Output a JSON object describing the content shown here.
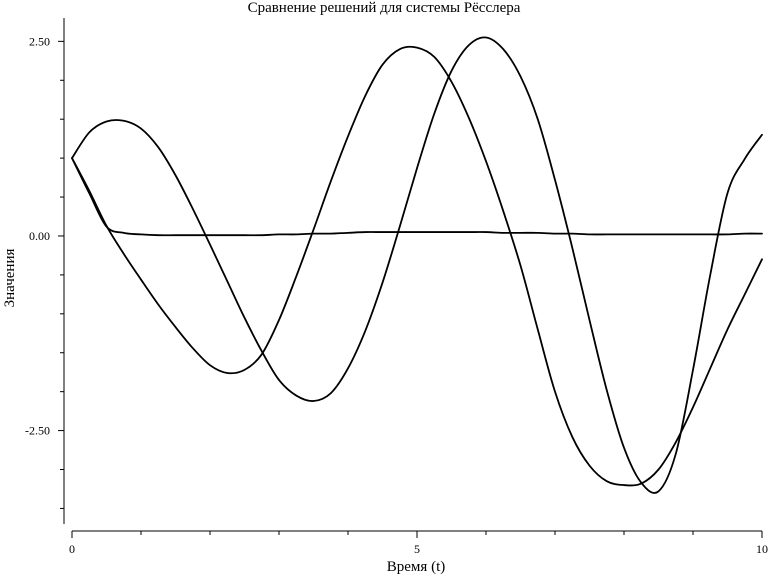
{
  "chart_data": {
    "type": "line",
    "title": "Сравнение решений для системы Рёсслера",
    "xlabel": "Время (t)",
    "ylabel": "Значения",
    "xlim": [
      0,
      10
    ],
    "ylim": [
      -3.7,
      2.8
    ],
    "grid": false,
    "legend": "none",
    "x_ticks": [
      {
        "value": 0,
        "label": "0"
      },
      {
        "value": 5,
        "label": "5"
      },
      {
        "value": 10,
        "label": "10"
      }
    ],
    "x_minor_ticks": [
      1,
      2,
      3,
      4,
      6,
      7,
      8,
      9
    ],
    "y_ticks": [
      {
        "value": 2.5,
        "label": "2.50"
      },
      {
        "value": 0,
        "label": "0.00"
      },
      {
        "value": -2.5,
        "label": "-2.50"
      }
    ],
    "y_minor_ticks": [
      -3.5,
      -3.0,
      -2.0,
      -1.5,
      -1.0,
      -0.5,
      0.5,
      1.0,
      1.5,
      2.0
    ],
    "x": [
      0,
      0.25,
      0.5,
      0.75,
      1.0,
      1.25,
      1.5,
      1.75,
      2.0,
      2.25,
      2.5,
      2.75,
      3.0,
      3.25,
      3.5,
      3.75,
      4.0,
      4.25,
      4.5,
      4.75,
      5.0,
      5.25,
      5.5,
      5.75,
      6.0,
      6.25,
      6.5,
      6.75,
      7.0,
      7.25,
      7.5,
      7.75,
      8.0,
      8.25,
      8.5,
      8.75,
      9.0,
      9.25,
      9.5,
      9.75,
      10.0
    ],
    "series": [
      {
        "color": "#000000",
        "values": [
          1.0,
          1.33,
          1.47,
          1.48,
          1.38,
          1.14,
          0.78,
          0.35,
          -0.11,
          -0.58,
          -1.05,
          -1.48,
          -1.85,
          -2.05,
          -2.12,
          -2.02,
          -1.7,
          -1.22,
          -0.6,
          0.12,
          0.87,
          1.57,
          2.12,
          2.45,
          2.55,
          2.4,
          2.05,
          1.5,
          0.72,
          -0.15,
          -1.08,
          -1.98,
          -2.72,
          -3.17,
          -3.28,
          -2.8,
          -1.72,
          -0.5,
          0.55,
          0.99,
          1.3
        ]
      },
      {
        "color": "#000000",
        "values": [
          1.0,
          0.58,
          0.13,
          -0.23,
          -0.56,
          -0.88,
          -1.17,
          -1.44,
          -1.66,
          -1.76,
          -1.72,
          -1.52,
          -1.08,
          -0.52,
          0.08,
          0.7,
          1.28,
          1.8,
          2.2,
          2.4,
          2.42,
          2.3,
          1.98,
          1.52,
          0.96,
          0.32,
          -0.38,
          -1.2,
          -2.0,
          -2.58,
          -2.95,
          -3.15,
          -3.2,
          -3.18,
          -3.0,
          -2.65,
          -2.2,
          -1.7,
          -1.2,
          -0.75,
          -0.3
        ]
      },
      {
        "color": "#000000",
        "values": [
          1.0,
          0.55,
          0.12,
          0.04,
          0.02,
          0.01,
          0.01,
          0.01,
          0.01,
          0.01,
          0.01,
          0.01,
          0.02,
          0.02,
          0.03,
          0.03,
          0.04,
          0.05,
          0.05,
          0.05,
          0.05,
          0.05,
          0.05,
          0.05,
          0.05,
          0.04,
          0.04,
          0.04,
          0.03,
          0.03,
          0.02,
          0.02,
          0.02,
          0.02,
          0.02,
          0.02,
          0.02,
          0.02,
          0.02,
          0.03,
          0.03
        ]
      }
    ]
  }
}
